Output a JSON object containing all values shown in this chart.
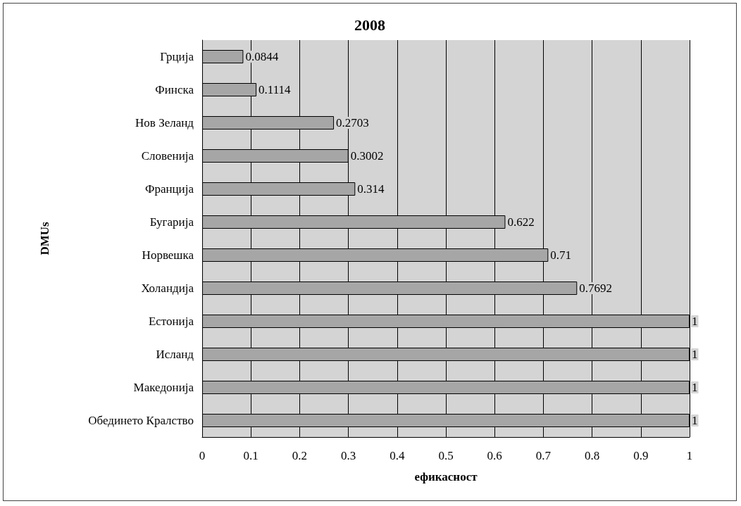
{
  "chart_data": {
    "type": "bar",
    "orientation": "horizontal",
    "title": "2008",
    "xlabel": "ефикасност",
    "ylabel": "DMUs",
    "categories": [
      "Грција",
      "Финска",
      "Нов Зеланд",
      "Словенија",
      "Франција",
      "Бугарија",
      "Норвешка",
      "Холандија",
      "Естонија",
      "Исланд",
      "Македонија",
      "Обединето Кралство"
    ],
    "values": [
      0.0844,
      0.1114,
      0.2703,
      0.3002,
      0.314,
      0.622,
      0.71,
      0.7692,
      1,
      1,
      1,
      1
    ],
    "color": "#a6a6a6",
    "xlim": [
      0,
      1
    ],
    "xticks": [
      0,
      0.1,
      0.2,
      0.3,
      0.4,
      0.5,
      0.6,
      0.7,
      0.8,
      0.9,
      1
    ],
    "grid": "x",
    "data_labels": true
  }
}
